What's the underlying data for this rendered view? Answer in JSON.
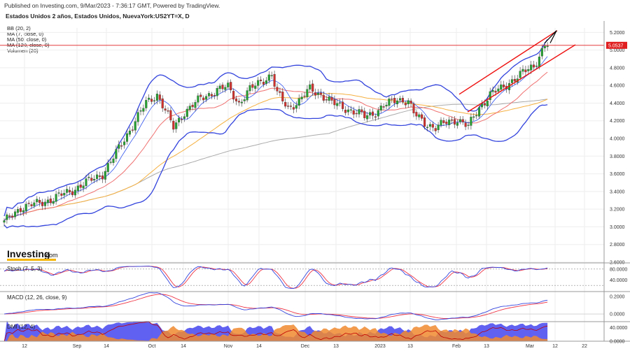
{
  "header": {
    "published": "Published on Investing.com, 9/Mar/2023 - 7:36:17 GMT, Powered by TradingView.",
    "title": "Estados Unidos 2 años, Estados Unidos, NuevaYork:US2YT=X, D"
  },
  "indicators": [
    "BB (20, 2)",
    "MA (7, close, 0)",
    "MA (50, close, 0)",
    "MA (120, close, 0)",
    "Volumen (20)"
  ],
  "logo": {
    "brand": "Investing",
    "suffix": ".com"
  },
  "colors": {
    "up": "#26a232",
    "down": "#d0312d",
    "bb": "#3344dd",
    "ma7": "#3355ee",
    "ma50": "#f07070",
    "ma120": "#aaaaaa",
    "ma_orange": "#f5b040",
    "channel": "#ee1111",
    "price_line": "#e02020",
    "stoch_k": "#3344dd",
    "stoch_d": "#ee3344",
    "dmi_plus": "#4444ee",
    "dmi_minus": "#f08a30",
    "dmi_adx": "#c00000"
  },
  "chart_data": [
    {
      "type": "candlestick",
      "title": "Estados Unidos 2 años, Estados Unidos, NuevaYork:US2YT=X, D",
      "x_ticks": [
        "12",
        "Sep",
        "14",
        "Oct",
        "14",
        "Nov",
        "14",
        "Dec",
        "13",
        "2023",
        "13",
        "Feb",
        "13",
        "Mar",
        "12",
        "22"
      ],
      "y_ticks": [
        "2.6000",
        "2.8000",
        "3.0000",
        "3.2000",
        "3.4000",
        "3.6000",
        "3.8000",
        "4.0000",
        "4.2000",
        "4.4000",
        "4.6000",
        "4.8000",
        "5.0000",
        "5.2000"
      ],
      "ylim": [
        2.6,
        5.25
      ],
      "last_price": "5.0537",
      "anchors": [
        [
          0,
          3.05
        ],
        [
          6,
          3.22
        ],
        [
          12,
          3.26
        ],
        [
          18,
          3.32
        ],
        [
          24,
          3.4
        ],
        [
          30,
          3.5
        ],
        [
          36,
          3.6
        ],
        [
          40,
          3.78
        ],
        [
          46,
          4.1
        ],
        [
          52,
          4.4
        ],
        [
          56,
          4.5
        ],
        [
          58,
          4.38
        ],
        [
          62,
          4.12
        ],
        [
          66,
          4.3
        ],
        [
          72,
          4.45
        ],
        [
          78,
          4.55
        ],
        [
          82,
          4.58
        ],
        [
          86,
          4.4
        ],
        [
          90,
          4.55
        ],
        [
          94,
          4.65
        ],
        [
          98,
          4.72
        ],
        [
          100,
          4.5
        ],
        [
          104,
          4.35
        ],
        [
          108,
          4.42
        ],
        [
          112,
          4.56
        ],
        [
          116,
          4.5
        ],
        [
          120,
          4.4
        ],
        [
          124,
          4.36
        ],
        [
          128,
          4.3
        ],
        [
          132,
          4.25
        ],
        [
          136,
          4.3
        ],
        [
          140,
          4.38
        ],
        [
          144,
          4.45
        ],
        [
          148,
          4.42
        ],
        [
          150,
          4.28
        ],
        [
          154,
          4.18
        ],
        [
          158,
          4.12
        ],
        [
          162,
          4.18
        ],
        [
          166,
          4.22
        ],
        [
          170,
          4.13
        ],
        [
          174,
          4.35
        ],
        [
          178,
          4.5
        ],
        [
          182,
          4.56
        ],
        [
          186,
          4.66
        ],
        [
          190,
          4.74
        ],
        [
          194,
          4.82
        ],
        [
          198,
          5.06
        ]
      ]
    },
    {
      "type": "line",
      "title": "Stoch (7, 5, 3)",
      "y_ticks": [
        "80.0000",
        "40.0000"
      ],
      "ylim": [
        0,
        100
      ]
    },
    {
      "type": "line",
      "title": "MACD (12, 26, close, 9)",
      "y_ticks": [
        "0.2000",
        "0.0000"
      ],
      "ylim": [
        -0.08,
        0.25
      ]
    },
    {
      "type": "area",
      "title": "DMI (12, 4)",
      "y_ticks": [
        "40.0000",
        "0.0000"
      ],
      "ylim": [
        0,
        55
      ]
    }
  ]
}
